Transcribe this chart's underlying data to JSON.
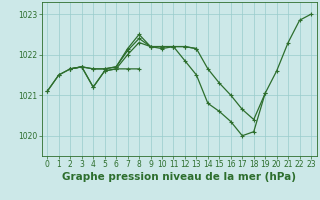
{
  "title": "Graphe pression niveau de la mer (hPa)",
  "bg_color": "#cce8e8",
  "line_color": "#2d6e2d",
  "grid_color": "#99cccc",
  "ylim": [
    1019.5,
    1023.3
  ],
  "yticks": [
    1020,
    1021,
    1022,
    1023
  ],
  "xlim": [
    -0.5,
    23.5
  ],
  "xticks": [
    0,
    1,
    2,
    3,
    4,
    5,
    6,
    7,
    8,
    9,
    10,
    11,
    12,
    13,
    14,
    15,
    16,
    17,
    18,
    19,
    20,
    21,
    22,
    23
  ],
  "lines": [
    {
      "x": [
        0,
        1,
        2,
        3,
        4,
        5,
        6,
        7,
        8,
        9,
        10,
        11,
        12,
        13,
        14,
        15,
        16,
        17,
        18,
        19,
        20,
        21,
        22,
        23
      ],
      "y": [
        1021.1,
        1021.5,
        1021.65,
        1021.7,
        1021.65,
        1021.65,
        1021.7,
        1022.1,
        1022.4,
        1022.2,
        1022.15,
        1022.2,
        1022.2,
        1022.15,
        1021.65,
        1021.3,
        1021.0,
        1020.65,
        1020.4,
        1021.05,
        1021.6,
        1022.3,
        1022.85,
        1023.0
      ]
    },
    {
      "x": [
        0,
        1,
        2,
        3,
        4,
        5,
        6,
        7,
        8,
        9,
        10,
        11,
        12,
        13,
        14,
        15,
        16,
        17,
        18,
        19
      ],
      "y": [
        1021.1,
        1021.5,
        1021.65,
        1021.7,
        1021.2,
        1021.6,
        1021.65,
        1022.0,
        1022.3,
        1022.2,
        1022.2,
        1022.2,
        1021.85,
        1021.5,
        1020.8,
        1020.6,
        1020.35,
        1020.0,
        1020.1,
        1021.05
      ]
    },
    {
      "x": [
        2,
        3,
        4,
        5,
        6,
        7,
        8,
        9,
        10,
        11,
        12,
        13
      ],
      "y": [
        1021.65,
        1021.7,
        1021.65,
        1021.65,
        1021.7,
        1022.15,
        1022.5,
        1022.2,
        1022.2,
        1022.2,
        1022.2,
        1022.15
      ]
    },
    {
      "x": [
        2,
        3,
        4,
        5,
        6,
        7,
        8
      ],
      "y": [
        1021.65,
        1021.7,
        1021.2,
        1021.6,
        1021.65,
        1021.65,
        1021.65
      ]
    }
  ],
  "marker": "+",
  "marker_size": 3.5,
  "linewidth": 0.9,
  "title_fontsize": 7.5,
  "tick_fontsize": 5.5
}
